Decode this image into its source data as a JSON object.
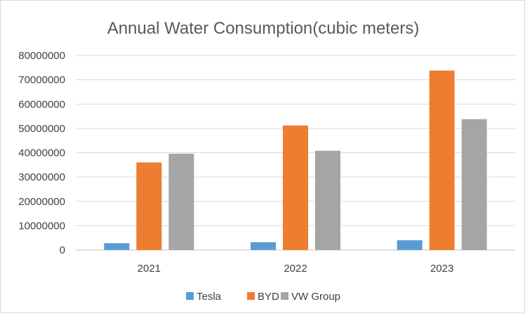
{
  "chart_data": {
    "type": "bar",
    "title": "Annual Water Consumption(cubic meters)",
    "xlabel": "",
    "ylabel": "",
    "categories": [
      "2021",
      "2022",
      "2023"
    ],
    "series": [
      {
        "name": "Tesla",
        "color": "#5b9bd5",
        "values": [
          2800000,
          3200000,
          4000000
        ]
      },
      {
        "name": "BYD",
        "color": "#ed7d31",
        "values": [
          36000000,
          51200000,
          73800000
        ]
      },
      {
        "name": "VW Group",
        "color": "#a5a5a5",
        "values": [
          39600000,
          40800000,
          53800000
        ]
      }
    ],
    "ylim": [
      0,
      80000000
    ],
    "yticks": [
      0,
      10000000,
      20000000,
      30000000,
      40000000,
      50000000,
      60000000,
      70000000,
      80000000
    ],
    "ytick_labels": [
      "0",
      "10000000",
      "20000000",
      "30000000",
      "40000000",
      "50000000",
      "60000000",
      "70000000",
      "80000000"
    ],
    "grid": true,
    "legend_position": "bottom"
  }
}
